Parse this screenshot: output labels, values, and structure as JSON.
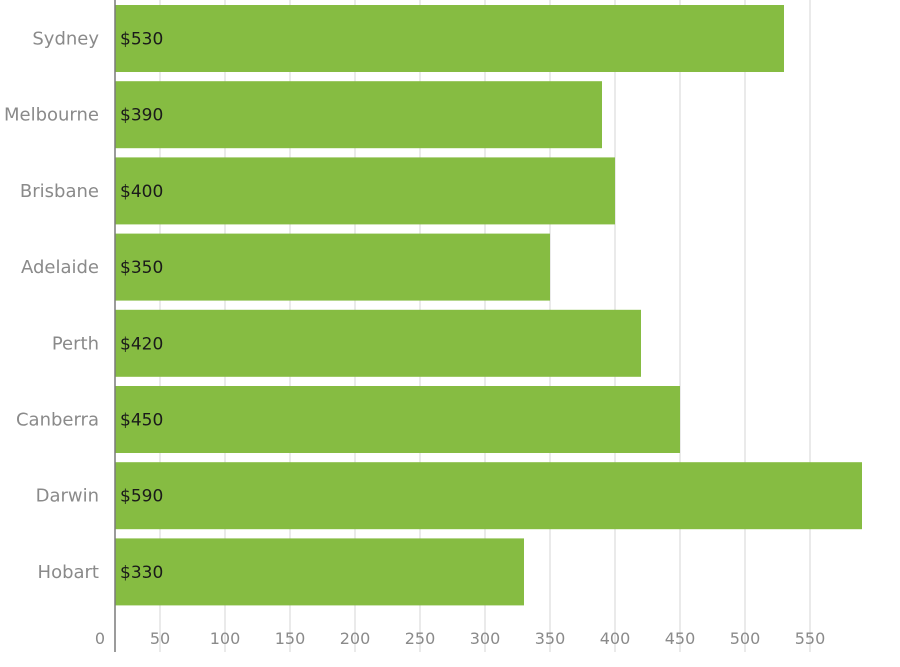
{
  "chart_data": {
    "type": "bar",
    "orientation": "horizontal",
    "categories": [
      "Sydney",
      "Melbourne",
      "Brisbane",
      "Adelaide",
      "Perth",
      "Canberra",
      "Darwin",
      "Hobart"
    ],
    "values": [
      530,
      390,
      400,
      350,
      420,
      450,
      590,
      330
    ],
    "value_labels": [
      "$530",
      "$390",
      "$400",
      "$350",
      "$420",
      "$450",
      "$590",
      "$330"
    ],
    "xticks": [
      0,
      50,
      100,
      150,
      200,
      250,
      300,
      350,
      400,
      450,
      500,
      550
    ],
    "xlim": [
      0,
      590
    ],
    "grid": true,
    "bar_color": "#86bc42"
  }
}
